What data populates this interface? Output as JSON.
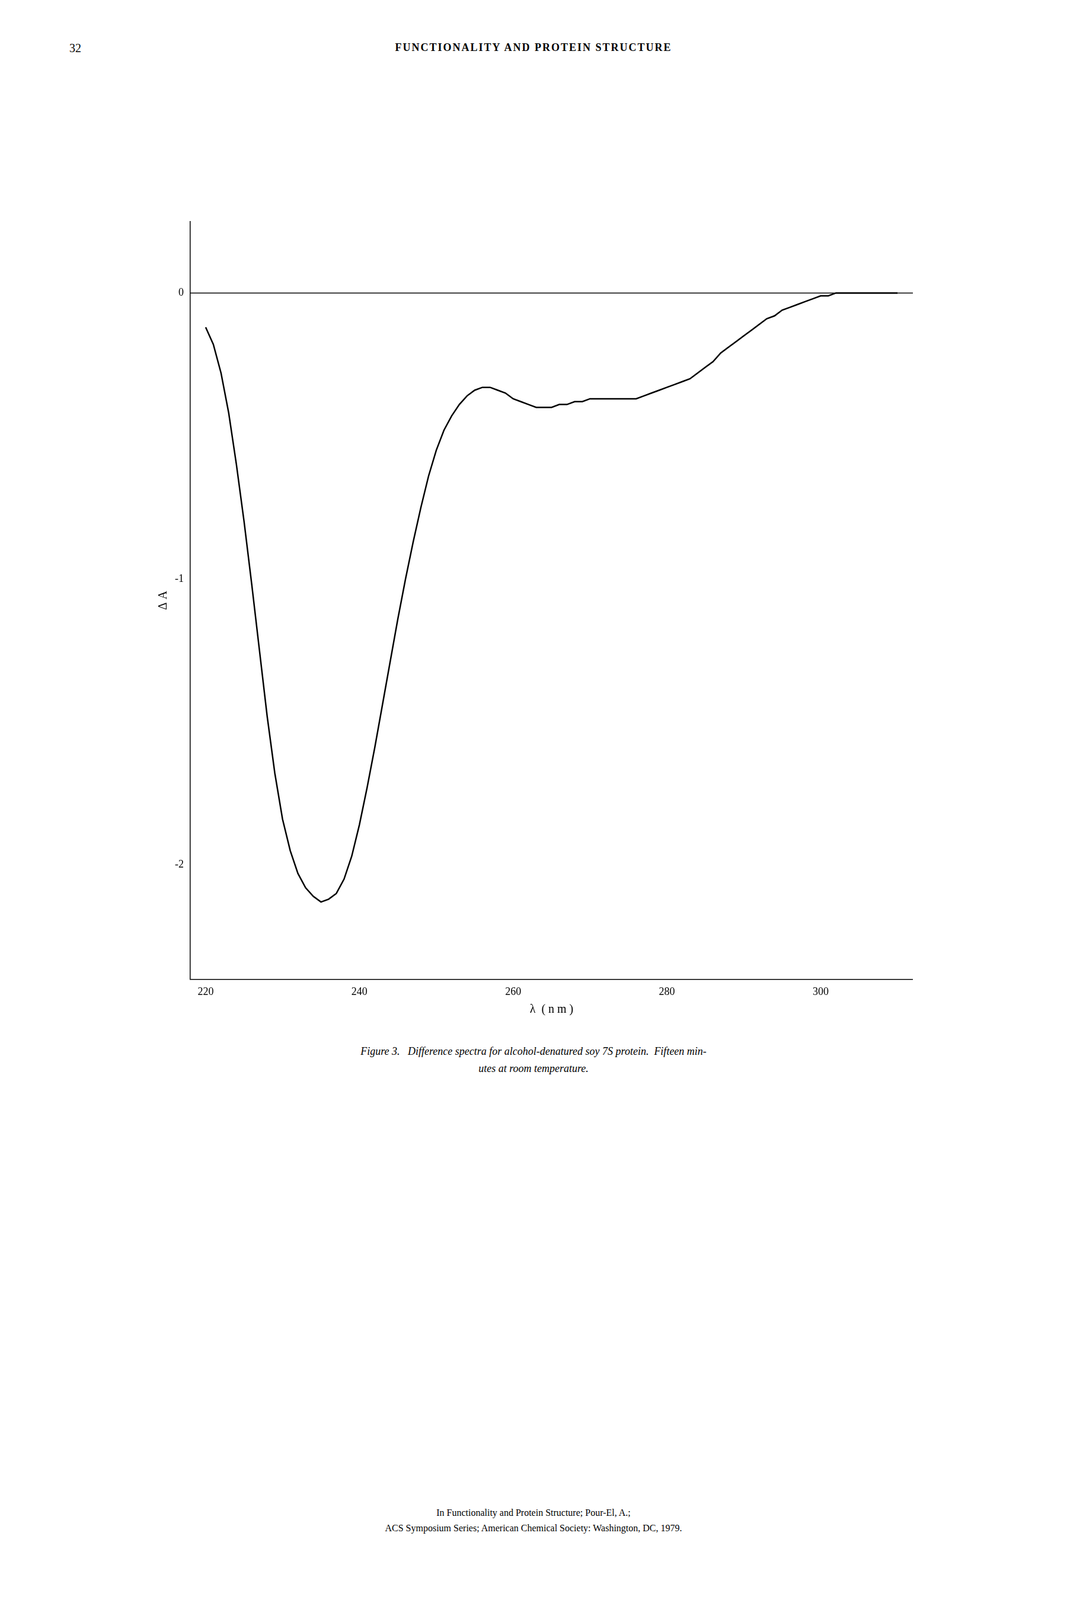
{
  "chart_data": {
    "type": "line",
    "title": "FUNCTIONALITY AND PROTEIN STRUCTURE",
    "x_label": "λ  ( n m )",
    "y_label": "Δ A",
    "x": [
      220,
      221,
      222,
      223,
      224,
      225,
      226,
      227,
      228,
      229,
      230,
      231,
      232,
      233,
      234,
      235,
      236,
      237,
      238,
      239,
      240,
      241,
      242,
      243,
      244,
      245,
      246,
      247,
      248,
      249,
      250,
      251,
      252,
      253,
      254,
      255,
      256,
      257,
      258,
      259,
      260,
      261,
      262,
      263,
      264,
      265,
      266,
      267,
      268,
      269,
      270,
      271,
      272,
      273,
      274,
      275,
      276,
      277,
      278,
      279,
      280,
      281,
      282,
      283,
      284,
      285,
      286,
      287,
      288,
      289,
      290,
      291,
      292,
      293,
      294,
      295,
      296,
      297,
      298,
      299,
      300,
      301,
      302,
      303,
      304,
      305,
      306,
      307,
      308,
      309,
      310
    ],
    "values": [
      -0.12,
      -0.18,
      -0.28,
      -0.42,
      -0.6,
      -0.8,
      -1.02,
      -1.25,
      -1.48,
      -1.68,
      -1.84,
      -1.95,
      -2.03,
      -2.08,
      -2.11,
      -2.13,
      -2.12,
      -2.1,
      -2.05,
      -1.97,
      -1.86,
      -1.73,
      -1.59,
      -1.44,
      -1.29,
      -1.14,
      -1.0,
      -0.87,
      -0.75,
      -0.64,
      -0.55,
      -0.48,
      -0.43,
      -0.39,
      -0.36,
      -0.34,
      -0.33,
      -0.33,
      -0.34,
      -0.35,
      -0.37,
      -0.38,
      -0.39,
      -0.4,
      -0.4,
      -0.4,
      -0.39,
      -0.39,
      -0.38,
      -0.38,
      -0.37,
      -0.37,
      -0.37,
      -0.37,
      -0.37,
      -0.37,
      -0.37,
      -0.36,
      -0.35,
      -0.34,
      -0.33,
      -0.32,
      -0.31,
      -0.3,
      -0.28,
      -0.26,
      -0.24,
      -0.21,
      -0.19,
      -0.17,
      -0.15,
      -0.13,
      -0.11,
      -0.09,
      -0.08,
      -0.06,
      -0.05,
      -0.04,
      -0.03,
      -0.02,
      -0.01,
      -0.01,
      0.0,
      0.0,
      0.0,
      0.0,
      0.0,
      0.0,
      0.0,
      0.0,
      0.0
    ],
    "color": "#000000",
    "xlim": [
      218,
      312
    ],
    "ylim": [
      -2.4,
      0.25
    ],
    "xticks": [
      220,
      240,
      260,
      280,
      300
    ],
    "yticks": [
      0,
      -1,
      -2
    ],
    "hlines": [
      0
    ],
    "grid": false,
    "annotations": {
      "page_number": "32",
      "caption": [
        "Figure 3.   Difference spectra for alcohol-denatured soy 7S protein.  Fifteen min-",
        "utes at room temperature."
      ],
      "footer": [
        "In Functionality and Protein Structure; Pour-El, A.;",
        "ACS Symposium Series; American Chemical Society: Washington, DC, 1979."
      ]
    }
  }
}
